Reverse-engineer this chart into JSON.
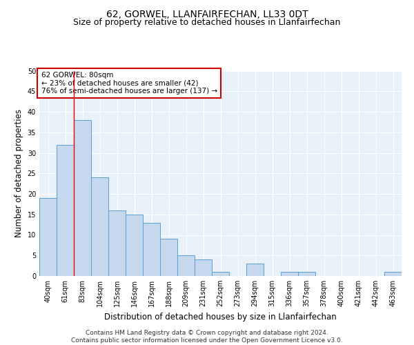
{
  "title": "62, GORWEL, LLANFAIRFECHAN, LL33 0DT",
  "subtitle": "Size of property relative to detached houses in Llanfairfechan",
  "xlabel": "Distribution of detached houses by size in Llanfairfechan",
  "ylabel": "Number of detached properties",
  "categories": [
    "40sqm",
    "61sqm",
    "83sqm",
    "104sqm",
    "125sqm",
    "146sqm",
    "167sqm",
    "188sqm",
    "209sqm",
    "231sqm",
    "252sqm",
    "273sqm",
    "294sqm",
    "315sqm",
    "336sqm",
    "357sqm",
    "378sqm",
    "400sqm",
    "421sqm",
    "442sqm",
    "463sqm"
  ],
  "values": [
    19,
    32,
    38,
    24,
    16,
    15,
    13,
    9,
    5,
    4,
    1,
    0,
    3,
    0,
    1,
    1,
    0,
    0,
    0,
    0,
    1
  ],
  "bar_color": "#c5d8ed",
  "bar_edge_color": "#5a9fd4",
  "background_color": "#e8f0f8",
  "grid_color": "#ffffff",
  "annotation_box_text": "62 GORWEL: 80sqm\n← 23% of detached houses are smaller (42)\n76% of semi-detached houses are larger (137) →",
  "annotation_box_color": "#ffffff",
  "annotation_box_edge_color": "#cc0000",
  "redline_x": 1.5,
  "ylim": [
    0,
    50
  ],
  "yticks": [
    0,
    5,
    10,
    15,
    20,
    25,
    30,
    35,
    40,
    45,
    50
  ],
  "footer": "Contains HM Land Registry data © Crown copyright and database right 2024.\nContains public sector information licensed under the Open Government Licence v3.0.",
  "title_fontsize": 10,
  "subtitle_fontsize": 9,
  "xlabel_fontsize": 8.5,
  "ylabel_fontsize": 8.5,
  "tick_fontsize": 7,
  "footer_fontsize": 6.5,
  "ann_fontsize": 7.5
}
